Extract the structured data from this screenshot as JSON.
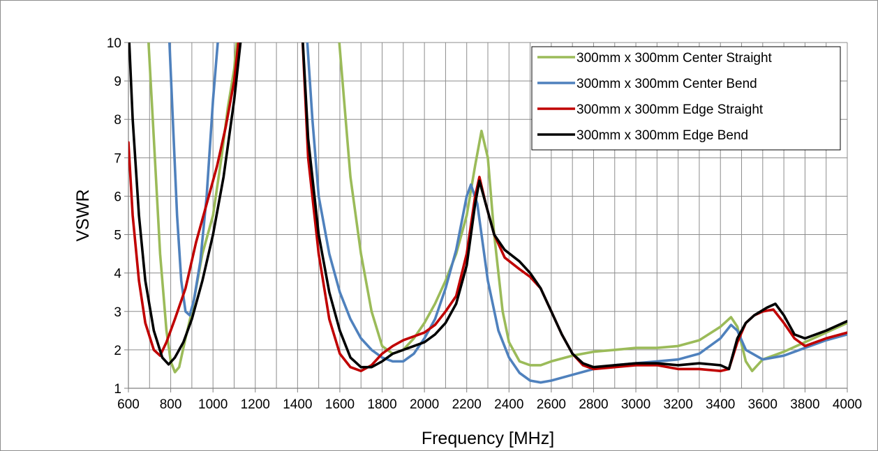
{
  "chart_data": {
    "type": "line",
    "xlabel": "Frequency [MHz]",
    "ylabel": "VSWR",
    "xlim": [
      600,
      4000
    ],
    "ylim": [
      1,
      10
    ],
    "xticks": [
      600,
      800,
      1000,
      1200,
      1400,
      1600,
      1800,
      2000,
      2200,
      2400,
      2600,
      2800,
      3000,
      3200,
      3400,
      3600,
      3800,
      4000
    ],
    "yticks": [
      1,
      2,
      3,
      4,
      5,
      6,
      7,
      8,
      9,
      10
    ],
    "grid": "on",
    "minor_x_grid_step": 100,
    "legend_position": "top-right",
    "series": [
      {
        "name": "300mm x 300mm Center Straight",
        "color": "#9bbb59",
        "points": [
          [
            690,
            10.5
          ],
          [
            720,
            7.5
          ],
          [
            750,
            4.5
          ],
          [
            780,
            2.5
          ],
          [
            800,
            1.7
          ],
          [
            820,
            1.42
          ],
          [
            840,
            1.55
          ],
          [
            870,
            2.3
          ],
          [
            900,
            3.0
          ],
          [
            950,
            4.5
          ],
          [
            1000,
            5.5
          ],
          [
            1040,
            7.0
          ],
          [
            1070,
            8.3
          ],
          [
            1100,
            9.3
          ],
          [
            1120,
            10.5
          ],
          [
            1590,
            10.5
          ],
          [
            1620,
            8.5
          ],
          [
            1650,
            6.5
          ],
          [
            1700,
            4.5
          ],
          [
            1750,
            3.0
          ],
          [
            1800,
            2.1
          ],
          [
            1850,
            1.9
          ],
          [
            1900,
            2.0
          ],
          [
            1950,
            2.3
          ],
          [
            2000,
            2.7
          ],
          [
            2050,
            3.2
          ],
          [
            2100,
            3.8
          ],
          [
            2150,
            4.5
          ],
          [
            2200,
            5.5
          ],
          [
            2240,
            6.8
          ],
          [
            2270,
            7.7
          ],
          [
            2300,
            7.0
          ],
          [
            2330,
            5.0
          ],
          [
            2370,
            3.0
          ],
          [
            2400,
            2.2
          ],
          [
            2450,
            1.7
          ],
          [
            2500,
            1.6
          ],
          [
            2550,
            1.6
          ],
          [
            2600,
            1.7
          ],
          [
            2700,
            1.85
          ],
          [
            2800,
            1.95
          ],
          [
            2900,
            2.0
          ],
          [
            3000,
            2.05
          ],
          [
            3100,
            2.05
          ],
          [
            3200,
            2.1
          ],
          [
            3300,
            2.25
          ],
          [
            3400,
            2.6
          ],
          [
            3450,
            2.85
          ],
          [
            3480,
            2.6
          ],
          [
            3520,
            1.7
          ],
          [
            3550,
            1.45
          ],
          [
            3600,
            1.75
          ],
          [
            3700,
            1.95
          ],
          [
            3800,
            2.2
          ],
          [
            3900,
            2.45
          ],
          [
            4000,
            2.7
          ]
        ]
      },
      {
        "name": "300mm x 300mm Center Bend",
        "color": "#4f81bd",
        "points": [
          [
            790,
            10.5
          ],
          [
            810,
            8.0
          ],
          [
            830,
            5.5
          ],
          [
            850,
            3.8
          ],
          [
            870,
            3.0
          ],
          [
            890,
            2.9
          ],
          [
            910,
            3.3
          ],
          [
            940,
            4.3
          ],
          [
            970,
            6.0
          ],
          [
            1000,
            8.5
          ],
          [
            1030,
            10.5
          ],
          [
            1440,
            10.5
          ],
          [
            1470,
            8.0
          ],
          [
            1500,
            6.0
          ],
          [
            1550,
            4.5
          ],
          [
            1600,
            3.5
          ],
          [
            1650,
            2.8
          ],
          [
            1700,
            2.3
          ],
          [
            1750,
            2.0
          ],
          [
            1800,
            1.8
          ],
          [
            1850,
            1.7
          ],
          [
            1900,
            1.7
          ],
          [
            1950,
            1.9
          ],
          [
            2000,
            2.3
          ],
          [
            2050,
            2.8
          ],
          [
            2100,
            3.6
          ],
          [
            2150,
            4.6
          ],
          [
            2200,
            6.0
          ],
          [
            2220,
            6.3
          ],
          [
            2250,
            5.8
          ],
          [
            2300,
            3.8
          ],
          [
            2350,
            2.5
          ],
          [
            2400,
            1.8
          ],
          [
            2450,
            1.4
          ],
          [
            2500,
            1.2
          ],
          [
            2550,
            1.15
          ],
          [
            2600,
            1.2
          ],
          [
            2700,
            1.35
          ],
          [
            2800,
            1.5
          ],
          [
            2900,
            1.6
          ],
          [
            3000,
            1.65
          ],
          [
            3100,
            1.7
          ],
          [
            3200,
            1.75
          ],
          [
            3300,
            1.9
          ],
          [
            3400,
            2.3
          ],
          [
            3450,
            2.65
          ],
          [
            3480,
            2.5
          ],
          [
            3520,
            2.0
          ],
          [
            3600,
            1.75
          ],
          [
            3700,
            1.85
          ],
          [
            3800,
            2.05
          ],
          [
            3900,
            2.25
          ],
          [
            4000,
            2.4
          ]
        ]
      },
      {
        "name": "300mm x 300mm Edge Straight",
        "color": "#c00000",
        "points": [
          [
            600,
            7.4
          ],
          [
            620,
            5.5
          ],
          [
            650,
            3.8
          ],
          [
            680,
            2.7
          ],
          [
            720,
            2.0
          ],
          [
            750,
            1.85
          ],
          [
            780,
            2.2
          ],
          [
            820,
            2.8
          ],
          [
            870,
            3.6
          ],
          [
            920,
            4.8
          ],
          [
            970,
            5.8
          ],
          [
            1020,
            6.8
          ],
          [
            1060,
            7.8
          ],
          [
            1100,
            9.0
          ],
          [
            1130,
            10.5
          ],
          [
            1420,
            10.5
          ],
          [
            1450,
            7.0
          ],
          [
            1500,
            4.5
          ],
          [
            1550,
            2.8
          ],
          [
            1600,
            1.9
          ],
          [
            1650,
            1.55
          ],
          [
            1700,
            1.45
          ],
          [
            1750,
            1.6
          ],
          [
            1800,
            1.9
          ],
          [
            1850,
            2.1
          ],
          [
            1900,
            2.25
          ],
          [
            1950,
            2.35
          ],
          [
            2000,
            2.45
          ],
          [
            2050,
            2.65
          ],
          [
            2100,
            3.0
          ],
          [
            2150,
            3.4
          ],
          [
            2200,
            4.5
          ],
          [
            2240,
            6.0
          ],
          [
            2260,
            6.5
          ],
          [
            2290,
            5.8
          ],
          [
            2330,
            5.0
          ],
          [
            2380,
            4.4
          ],
          [
            2450,
            4.1
          ],
          [
            2500,
            3.9
          ],
          [
            2550,
            3.6
          ],
          [
            2600,
            3.0
          ],
          [
            2650,
            2.4
          ],
          [
            2700,
            1.9
          ],
          [
            2750,
            1.6
          ],
          [
            2800,
            1.5
          ],
          [
            2900,
            1.55
          ],
          [
            3000,
            1.6
          ],
          [
            3100,
            1.6
          ],
          [
            3200,
            1.5
          ],
          [
            3300,
            1.5
          ],
          [
            3400,
            1.45
          ],
          [
            3440,
            1.5
          ],
          [
            3480,
            2.2
          ],
          [
            3520,
            2.7
          ],
          [
            3560,
            2.9
          ],
          [
            3600,
            3.0
          ],
          [
            3650,
            3.05
          ],
          [
            3700,
            2.7
          ],
          [
            3750,
            2.3
          ],
          [
            3800,
            2.1
          ],
          [
            3900,
            2.3
          ],
          [
            4000,
            2.45
          ]
        ]
      },
      {
        "name": "300mm x 300mm Edge Bend",
        "color": "#000000",
        "points": [
          [
            600,
            10.5
          ],
          [
            620,
            8.0
          ],
          [
            650,
            5.5
          ],
          [
            680,
            3.8
          ],
          [
            720,
            2.5
          ],
          [
            760,
            1.8
          ],
          [
            790,
            1.62
          ],
          [
            820,
            1.8
          ],
          [
            860,
            2.2
          ],
          [
            900,
            2.8
          ],
          [
            950,
            3.8
          ],
          [
            1000,
            5.0
          ],
          [
            1050,
            6.5
          ],
          [
            1100,
            8.5
          ],
          [
            1140,
            10.5
          ],
          [
            1420,
            10.5
          ],
          [
            1450,
            7.5
          ],
          [
            1500,
            5.0
          ],
          [
            1550,
            3.5
          ],
          [
            1600,
            2.5
          ],
          [
            1650,
            1.8
          ],
          [
            1700,
            1.55
          ],
          [
            1750,
            1.55
          ],
          [
            1800,
            1.7
          ],
          [
            1850,
            1.9
          ],
          [
            1900,
            2.0
          ],
          [
            1950,
            2.1
          ],
          [
            2000,
            2.2
          ],
          [
            2050,
            2.4
          ],
          [
            2100,
            2.7
          ],
          [
            2150,
            3.2
          ],
          [
            2200,
            4.2
          ],
          [
            2240,
            5.8
          ],
          [
            2260,
            6.4
          ],
          [
            2290,
            5.8
          ],
          [
            2330,
            5.0
          ],
          [
            2380,
            4.6
          ],
          [
            2450,
            4.3
          ],
          [
            2500,
            4.0
          ],
          [
            2550,
            3.6
          ],
          [
            2600,
            3.0
          ],
          [
            2650,
            2.4
          ],
          [
            2700,
            1.9
          ],
          [
            2750,
            1.65
          ],
          [
            2800,
            1.55
          ],
          [
            2900,
            1.6
          ],
          [
            3000,
            1.65
          ],
          [
            3100,
            1.65
          ],
          [
            3200,
            1.6
          ],
          [
            3300,
            1.65
          ],
          [
            3400,
            1.6
          ],
          [
            3440,
            1.5
          ],
          [
            3480,
            2.3
          ],
          [
            3520,
            2.7
          ],
          [
            3560,
            2.9
          ],
          [
            3620,
            3.1
          ],
          [
            3660,
            3.2
          ],
          [
            3700,
            2.9
          ],
          [
            3750,
            2.4
          ],
          [
            3800,
            2.3
          ],
          [
            3900,
            2.5
          ],
          [
            4000,
            2.75
          ]
        ]
      }
    ]
  }
}
